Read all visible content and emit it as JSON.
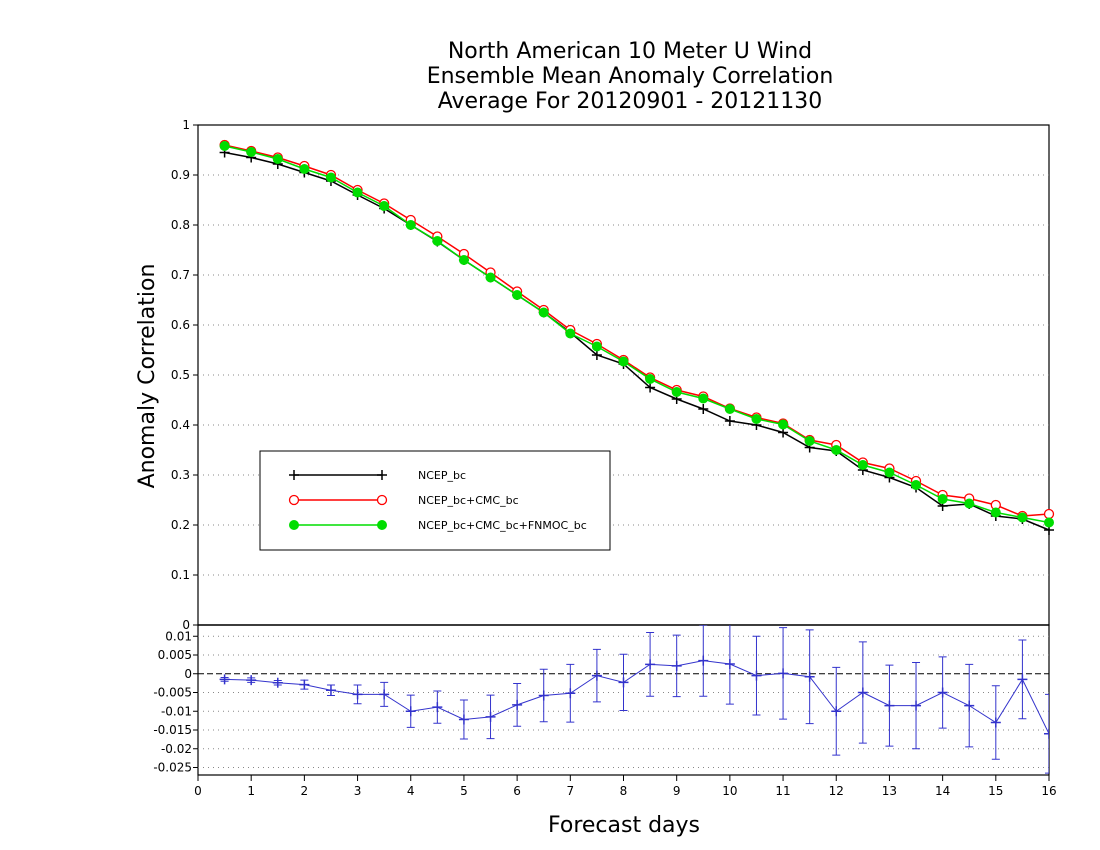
{
  "chart_data": [
    {
      "type": "line",
      "title": [
        "North American 10 Meter U Wind",
        "Ensemble Mean Anomaly Correlation",
        "Average For 20120901 - 20121130"
      ],
      "xlabel": "Forecast days",
      "ylabel": "Anomaly Correlation",
      "xlim": [
        0,
        16
      ],
      "ylim": [
        0,
        1
      ],
      "yticks": [
        "0",
        "0.1",
        "0.2",
        "0.3",
        "0.4",
        "0.5",
        "0.6",
        "0.7",
        "0.8",
        "0.9",
        "1"
      ],
      "grid": "horizontal dotted",
      "legend_placement": "center-left",
      "x": [
        0.5,
        1,
        1.5,
        2,
        2.5,
        3,
        3.5,
        4,
        4.5,
        5,
        5.5,
        6,
        6.5,
        7,
        7.5,
        8,
        8.5,
        9,
        9.5,
        10,
        10.5,
        11,
        11.5,
        12,
        12.5,
        13,
        13.5,
        14,
        14.5,
        15,
        15.5,
        16
      ],
      "series": [
        {
          "name": "NCEP_bc",
          "color": "#000000",
          "marker": "plus",
          "values": [
            0.945,
            0.935,
            0.922,
            0.905,
            0.888,
            0.86,
            0.833,
            0.8,
            0.767,
            0.73,
            0.695,
            0.66,
            0.625,
            0.585,
            0.54,
            0.522,
            0.475,
            0.452,
            0.432,
            0.408,
            0.4,
            0.385,
            0.355,
            0.348,
            0.31,
            0.295,
            0.275,
            0.238,
            0.242,
            0.218,
            0.212,
            0.19
          ]
        },
        {
          "name": "NCEP_bc+CMC_bc",
          "color": "#ff0000",
          "marker": "open-circle",
          "values": [
            0.96,
            0.948,
            0.935,
            0.918,
            0.9,
            0.87,
            0.843,
            0.81,
            0.777,
            0.742,
            0.705,
            0.667,
            0.63,
            0.59,
            0.562,
            0.53,
            0.495,
            0.47,
            0.457,
            0.433,
            0.415,
            0.403,
            0.37,
            0.36,
            0.325,
            0.313,
            0.288,
            0.26,
            0.253,
            0.24,
            0.218,
            0.222
          ]
        },
        {
          "name": "NCEP_bc+CMC_bc+FNMOC_bc",
          "color": "#00dd00",
          "marker": "filled-circle",
          "values": [
            0.958,
            0.946,
            0.932,
            0.912,
            0.895,
            0.865,
            0.838,
            0.8,
            0.768,
            0.73,
            0.695,
            0.66,
            0.625,
            0.583,
            0.557,
            0.527,
            0.492,
            0.466,
            0.453,
            0.432,
            0.412,
            0.401,
            0.368,
            0.35,
            0.32,
            0.305,
            0.28,
            0.252,
            0.243,
            0.225,
            0.215,
            0.205
          ]
        }
      ]
    },
    {
      "type": "line",
      "xlim": [
        0,
        16
      ],
      "ylim": [
        -0.027,
        0.013
      ],
      "yticks": [
        "0.01",
        "0.005",
        "0",
        "-0.005",
        "-0.01",
        "-0.015",
        "-0.02",
        "-0.025"
      ],
      "xticks": [
        "0",
        "1",
        "2",
        "3",
        "4",
        "5",
        "6",
        "7",
        "8",
        "9",
        "10",
        "11",
        "12",
        "13",
        "14",
        "15",
        "16"
      ],
      "zero_line": "dashed",
      "x": [
        0.5,
        1,
        1.5,
        2,
        2.5,
        3,
        3.5,
        4,
        4.5,
        5,
        5.5,
        6,
        6.5,
        7,
        7.5,
        8,
        8.5,
        9,
        9.5,
        10,
        10.5,
        11,
        11.5,
        12,
        12.5,
        13,
        13.5,
        14,
        14.5,
        15,
        15.5,
        16
      ],
      "series": [
        {
          "color": "#3333cc",
          "marker": "error-bar",
          "values": [
            -0.0015,
            -0.0017,
            -0.0024,
            -0.0029,
            -0.0044,
            -0.0055,
            -0.0055,
            -0.01,
            -0.0089,
            -0.0122,
            -0.0115,
            -0.0083,
            -0.0058,
            -0.0052,
            -0.0005,
            -0.0023,
            0.0025,
            0.0021,
            0.0035,
            0.0026,
            -0.0005,
            0.0001,
            -0.0008,
            -0.01,
            -0.005,
            -0.0085,
            -0.0085,
            -0.005,
            -0.0085,
            -0.013,
            -0.0015,
            -0.016
          ],
          "error": [
            0.0005,
            0.0006,
            0.0006,
            0.0012,
            0.0014,
            0.0025,
            0.0032,
            0.0043,
            0.0043,
            0.0052,
            0.0058,
            0.0057,
            0.007,
            0.0077,
            0.007,
            0.0075,
            0.0085,
            0.0082,
            0.0095,
            0.0107,
            0.0105,
            0.0122,
            0.0125,
            0.0117,
            0.0135,
            0.0108,
            0.0115,
            0.0095,
            0.011,
            0.0098,
            0.0105,
            0.0105
          ]
        }
      ]
    }
  ]
}
